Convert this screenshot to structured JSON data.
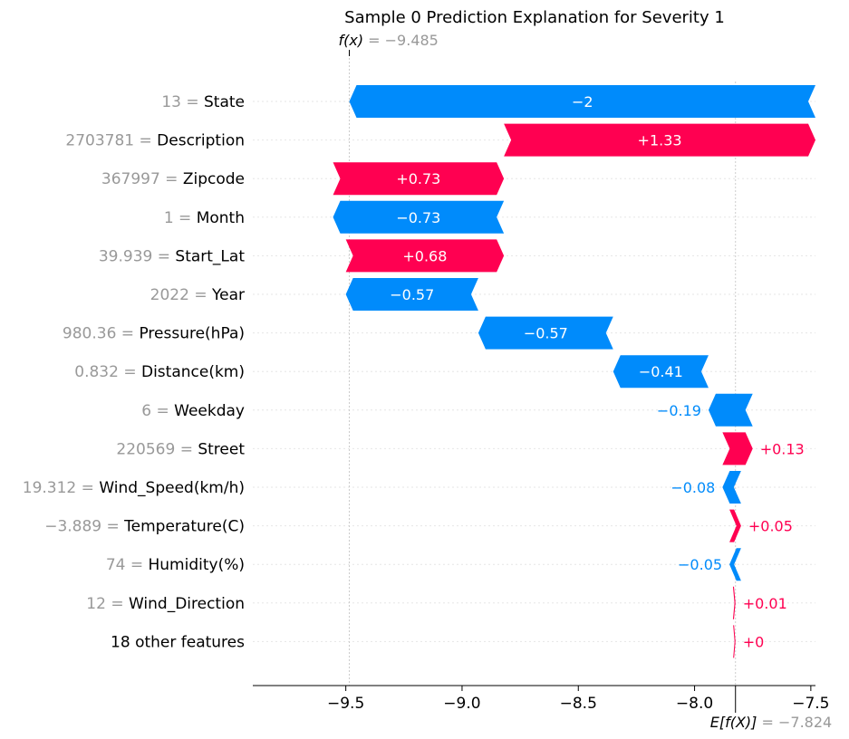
{
  "chart_data": {
    "type": "waterfall",
    "title": "Sample 0 Prediction Explanation for Severity 1",
    "fx_label": "f(x) = −9.485",
    "fx_value": -9.485,
    "efx_label": "E[f(X)] = −7.824",
    "efx_value": -7.824,
    "xlim": [
      -9.9,
      -7.48
    ],
    "xticks": [
      -9.5,
      -9.0,
      -8.5,
      -8.0,
      -7.5
    ],
    "xtick_labels": [
      "−9.5",
      "−9.0",
      "−8.5",
      "−8.0",
      "−7.5"
    ],
    "grid": false,
    "colors": {
      "positive": "#ff0051",
      "negative": "#008bfb",
      "feature_value": "#999999",
      "feature_name": "#000000",
      "guide": "#cccccc",
      "axis": "#000000"
    },
    "features": [
      {
        "value_text": "13",
        "name": "State",
        "contribution": -2.0,
        "label": "−2",
        "start": -7.48,
        "end": -9.485
      },
      {
        "value_text": "2703781",
        "name": "Description",
        "contribution": 1.33,
        "label": "+1.33",
        "start": -8.82,
        "end": -7.48
      },
      {
        "value_text": "367997",
        "name": "Zipcode",
        "contribution": 0.73,
        "label": "+0.73",
        "start": -9.555,
        "end": -8.82
      },
      {
        "value_text": "1",
        "name": "Month",
        "contribution": -0.73,
        "label": "−0.73",
        "start": -8.82,
        "end": -9.555
      },
      {
        "value_text": "39.939",
        "name": "Start_Lat",
        "contribution": 0.68,
        "label": "+0.68",
        "start": -9.5,
        "end": -8.82
      },
      {
        "value_text": "2022",
        "name": "Year",
        "contribution": -0.57,
        "label": "−0.57",
        "start": -8.93,
        "end": -9.5
      },
      {
        "value_text": "980.36",
        "name": "Pressure(hPa)",
        "contribution": -0.57,
        "label": "−0.57",
        "start": -8.35,
        "end": -8.93
      },
      {
        "value_text": "0.832",
        "name": "Distance(km)",
        "contribution": -0.41,
        "label": "−0.41",
        "start": -7.94,
        "end": -8.35
      },
      {
        "value_text": "6",
        "name": "Weekday",
        "contribution": -0.19,
        "label": "−0.19",
        "start": -7.75,
        "end": -7.94
      },
      {
        "value_text": "220569",
        "name": "Street",
        "contribution": 0.13,
        "label": "+0.13",
        "start": -7.88,
        "end": -7.75
      },
      {
        "value_text": "19.312",
        "name": "Wind_Speed(km/h)",
        "contribution": -0.08,
        "label": "−0.08",
        "start": -7.8,
        "end": -7.88
      },
      {
        "value_text": "−3.889",
        "name": "Temperature(C)",
        "contribution": 0.05,
        "label": "+0.05",
        "start": -7.85,
        "end": -7.8
      },
      {
        "value_text": "74",
        "name": "Humidity(%)",
        "contribution": -0.05,
        "label": "−0.05",
        "start": -7.8,
        "end": -7.85
      },
      {
        "value_text": "12",
        "name": "Wind_Direction",
        "contribution": 0.01,
        "label": "+0.01",
        "start": -7.835,
        "end": -7.824
      },
      {
        "value_text": "",
        "name": "18 other features",
        "contribution": 0.0,
        "label": "+0",
        "start": -7.834,
        "end": -7.824
      }
    ]
  }
}
